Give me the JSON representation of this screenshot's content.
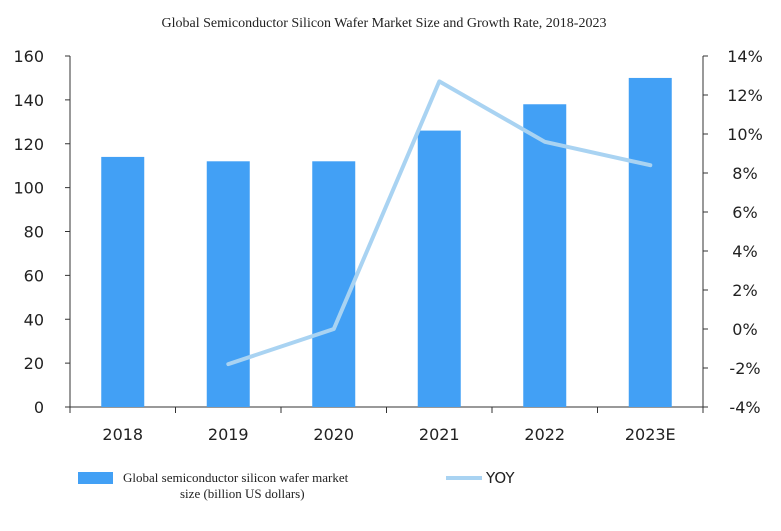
{
  "chart_data": {
    "type": "bar",
    "title": "Global Semiconductor Silicon Wafer Market Size and Growth Rate, 2018-2023",
    "categories": [
      "2018",
      "2019",
      "2020",
      "2021",
      "2022",
      "2023E"
    ],
    "series": [
      {
        "name": "Global semiconductor silicon wafer market size (billion US dollars)",
        "name_lines": [
          "Global semiconductor silicon wafer market",
          "size (billion US dollars)"
        ],
        "type": "bar",
        "axis": "left",
        "values": [
          114,
          112,
          112,
          126,
          138,
          150
        ]
      },
      {
        "name": "YOY",
        "type": "line",
        "axis": "right",
        "values": [
          null,
          -1.8,
          0.0,
          12.7,
          9.6,
          8.4
        ]
      }
    ],
    "y_left": {
      "min": 0,
      "max": 160,
      "step": 20,
      "tick_labels": [
        "0",
        "20",
        "40",
        "60",
        "80",
        "100",
        "120",
        "140",
        "160"
      ]
    },
    "y_right": {
      "min": -4,
      "max": 14,
      "step": 2,
      "tick_labels": [
        "-4%",
        "-2%",
        "0%",
        "2%",
        "4%",
        "6%",
        "8%",
        "10%",
        "12%",
        "14%"
      ]
    },
    "grid": false,
    "legend_position": "bottom",
    "colors": {
      "bar": "#42A0F5",
      "line": "#A9D3F2",
      "axis": "#333333",
      "text": "#222222"
    }
  }
}
